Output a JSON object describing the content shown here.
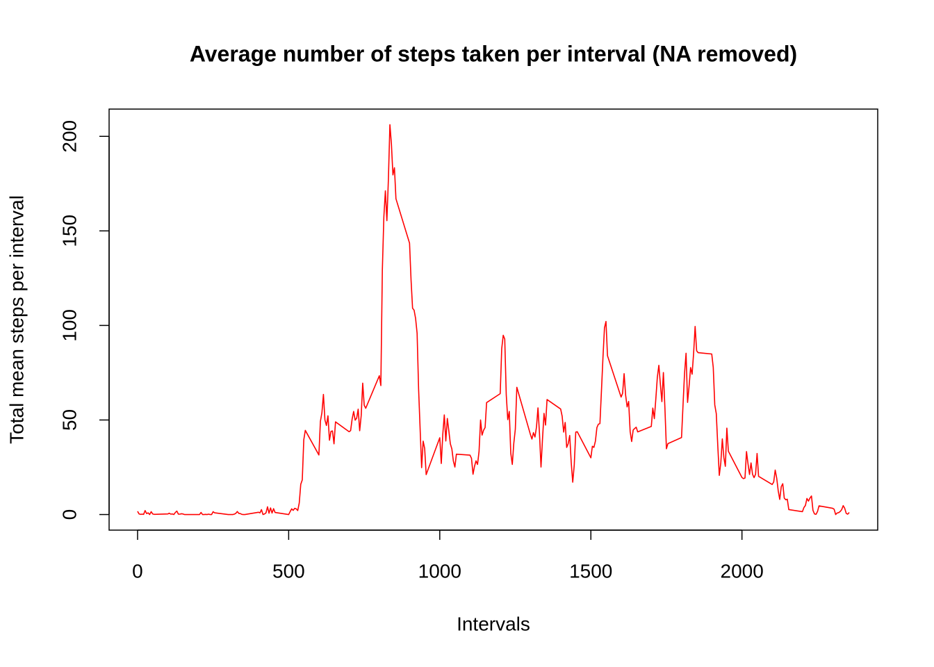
{
  "chart_data": {
    "type": "line",
    "title": "Average number of steps taken per interval (NA removed)",
    "x_label": "Intervals",
    "y_label": "Total  mean steps per interval",
    "xlim": [
      -94.2,
      2449.2
    ],
    "ylim": [
      -8.25,
      214.42
    ],
    "xticks": [
      0,
      500,
      1000,
      1500,
      2000
    ],
    "yticks": [
      0,
      50,
      100,
      150,
      200
    ],
    "grid": false,
    "series": [
      {
        "color": "#ff0000",
        "x": [
          0,
          5,
          10,
          15,
          20,
          25,
          30,
          35,
          40,
          45,
          50,
          55,
          100,
          105,
          110,
          115,
          120,
          125,
          130,
          135,
          140,
          145,
          150,
          155,
          200,
          205,
          210,
          215,
          220,
          225,
          230,
          235,
          240,
          245,
          250,
          255,
          300,
          305,
          310,
          315,
          320,
          325,
          330,
          335,
          340,
          345,
          350,
          355,
          400,
          405,
          410,
          415,
          420,
          425,
          430,
          435,
          440,
          445,
          450,
          455,
          500,
          505,
          510,
          515,
          520,
          525,
          530,
          535,
          540,
          545,
          550,
          555,
          600,
          605,
          610,
          615,
          620,
          625,
          630,
          635,
          640,
          645,
          650,
          655,
          700,
          705,
          710,
          715,
          720,
          725,
          730,
          735,
          740,
          745,
          750,
          755,
          800,
          805,
          810,
          815,
          820,
          825,
          830,
          835,
          840,
          845,
          850,
          855,
          900,
          905,
          910,
          915,
          920,
          925,
          930,
          935,
          940,
          945,
          950,
          955,
          1000,
          1005,
          1010,
          1015,
          1020,
          1025,
          1030,
          1035,
          1040,
          1045,
          1050,
          1055,
          1100,
          1105,
          1110,
          1115,
          1120,
          1125,
          1130,
          1135,
          1140,
          1145,
          1150,
          1155,
          1200,
          1205,
          1210,
          1215,
          1220,
          1225,
          1230,
          1235,
          1240,
          1245,
          1250,
          1255,
          1300,
          1305,
          1310,
          1315,
          1320,
          1325,
          1330,
          1335,
          1340,
          1345,
          1350,
          1355,
          1400,
          1405,
          1410,
          1415,
          1420,
          1425,
          1430,
          1435,
          1440,
          1445,
          1450,
          1455,
          1500,
          1505,
          1510,
          1515,
          1520,
          1525,
          1530,
          1535,
          1540,
          1545,
          1550,
          1555,
          1600,
          1605,
          1610,
          1615,
          1620,
          1625,
          1630,
          1635,
          1640,
          1645,
          1650,
          1655,
          1700,
          1705,
          1710,
          1715,
          1720,
          1725,
          1730,
          1735,
          1740,
          1745,
          1750,
          1755,
          1800,
          1805,
          1810,
          1815,
          1820,
          1825,
          1830,
          1835,
          1840,
          1845,
          1850,
          1855,
          1900,
          1905,
          1910,
          1915,
          1920,
          1925,
          1930,
          1935,
          1940,
          1945,
          1950,
          1955,
          2000,
          2005,
          2010,
          2015,
          2020,
          2025,
          2030,
          2035,
          2040,
          2045,
          2050,
          2055,
          2100,
          2105,
          2110,
          2115,
          2120,
          2125,
          2130,
          2135,
          2140,
          2145,
          2150,
          2155,
          2200,
          2205,
          2210,
          2215,
          2220,
          2225,
          2230,
          2235,
          2240,
          2245,
          2250,
          2255,
          2300,
          2305,
          2310,
          2315,
          2320,
          2325,
          2330,
          2335,
          2340,
          2345,
          2350,
          2355
        ],
        "values": [
          1.7,
          0.3,
          0.1,
          0.2,
          0.1,
          2.1,
          0.5,
          0.9,
          0,
          1.5,
          0.3,
          0.1,
          0.3,
          0.7,
          0.2,
          0.3,
          0,
          1.1,
          1.8,
          0.2,
          0.2,
          0.4,
          0.3,
          0,
          0,
          0,
          1.1,
          0,
          0,
          0.1,
          0,
          0.2,
          0,
          0,
          1.5,
          0.9,
          0,
          0,
          0,
          0,
          0.2,
          0.6,
          1.6,
          0.6,
          0.5,
          0.1,
          0,
          0,
          1.2,
          0.9,
          2.6,
          0,
          0.3,
          0.9,
          4.1,
          0.7,
          3.5,
          0.8,
          3.1,
          1.1,
          0,
          1.6,
          3.0,
          2.2,
          3.3,
          3.0,
          2.1,
          6.1,
          16.0,
          18.3,
          39.5,
          44.5,
          31.5,
          49.3,
          53.8,
          63.5,
          50.0,
          47.1,
          52.2,
          39.3,
          44.0,
          44.2,
          37.4,
          49.0,
          43.8,
          44.4,
          50.5,
          54.5,
          49.9,
          51.0,
          55.7,
          44.3,
          52.3,
          69.5,
          57.8,
          56.2,
          73.4,
          68.2,
          129.4,
          157.5,
          171.2,
          155.4,
          177.3,
          206.2,
          195.9,
          179.6,
          183.4,
          167.0,
          143.5,
          124.0,
          109.1,
          108.1,
          103.7,
          95.9,
          66.2,
          45.2,
          24.8,
          38.8,
          35.0,
          21.1,
          40.6,
          27.0,
          42.4,
          52.7,
          38.9,
          50.8,
          44.3,
          37.4,
          34.7,
          28.3,
          25.1,
          31.9,
          31.4,
          29.7,
          21.3,
          25.5,
          28.4,
          26.5,
          33.4,
          50.0,
          42.0,
          44.6,
          46.0,
          59.2,
          63.9,
          87.7,
          94.8,
          92.8,
          63.4,
          50.2,
          54.5,
          32.4,
          26.5,
          37.7,
          45.1,
          67.3,
          42.3,
          39.9,
          43.3,
          41.0,
          46.2,
          56.4,
          42.8,
          25.1,
          40.0,
          53.5,
          47.3,
          60.8,
          55.8,
          52.0,
          43.6,
          48.7,
          35.5,
          37.5,
          41.8,
          27.5,
          17.1,
          26.1,
          43.6,
          43.8,
          30.0,
          36.1,
          35.5,
          38.8,
          46.0,
          47.8,
          48.1,
          65.3,
          82.9,
          98.7,
          102.1,
          84.0,
          62.1,
          64.1,
          74.5,
          63.2,
          56.9,
          59.8,
          43.9,
          38.6,
          44.7,
          45.5,
          46.2,
          43.7,
          46.6,
          56.3,
          50.7,
          61.2,
          72.7,
          78.9,
          68.9,
          59.7,
          75.1,
          56.5,
          34.8,
          37.5,
          40.7,
          58.0,
          74.7,
          85.3,
          59.3,
          67.8,
          77.7,
          74.2,
          85.3,
          99.5,
          86.6,
          85.6,
          84.9,
          77.8,
          58.0,
          53.4,
          36.3,
          20.7,
          27.4,
          40.0,
          30.2,
          25.5,
          45.7,
          33.5,
          19.6,
          19.0,
          19.3,
          33.3,
          26.8,
          21.2,
          27.3,
          21.3,
          19.5,
          21.3,
          32.3,
          20.2,
          15.9,
          17.2,
          23.5,
          19.2,
          12.5,
          8.0,
          14.7,
          16.3,
          8.7,
          7.8,
          8.1,
          2.6,
          1.5,
          3.7,
          4.8,
          8.5,
          7.1,
          8.7,
          9.8,
          2.2,
          0.3,
          0.1,
          1.6,
          4.6,
          3.3,
          2.8,
          0,
          0.8,
          1.0,
          1.6,
          2.6,
          4.7,
          3.3,
          0.6,
          0.2,
          1.1
        ]
      }
    ]
  }
}
